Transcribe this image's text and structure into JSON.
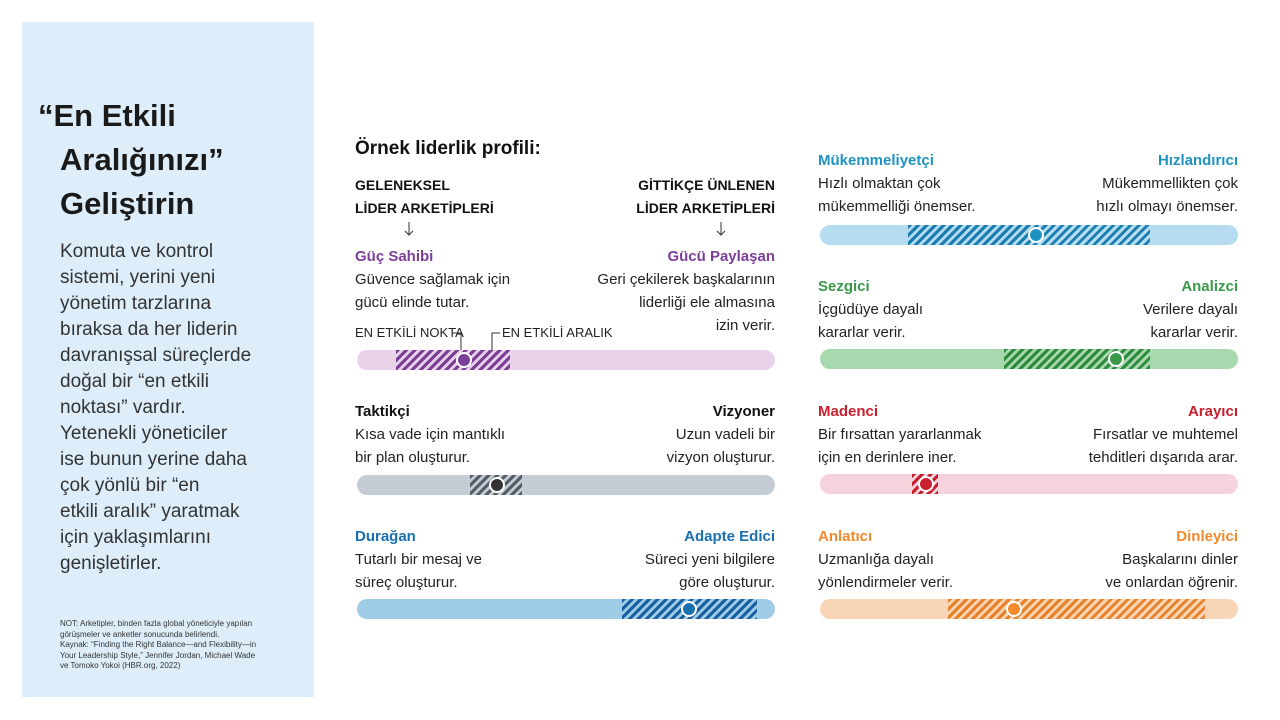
{
  "sidebar": {
    "title": [
      "“En Etkili",
      "Aralığınızı”",
      "Geliştirin"
    ],
    "body": [
      "Komuta ve kontrol",
      "sistemi, yerini yeni",
      "yönetim tarzlarına",
      "bıraksa da her liderin",
      "davranışsal süreçlerde",
      "doğal bir “en etkili",
      "noktası” vardır.",
      "Yetenekli yöneticiler",
      "ise bunun yerine daha",
      "çok yönlü bir “en",
      "etkili aralık” yaratmak",
      "için yaklaşımlarını",
      "genişletirler."
    ],
    "note": [
      "NOT: Arketipler, binden fazla global yöneticiyle yapılan",
      "görüşmeler ve anketler sonucunda belirlendi.",
      "Kaynak: “Finding the Right Balance—and Flexibility—in",
      "Your Leadership Style,” Jennifer Jordan, Michael Wade",
      "ve Tomoko Yokoi (HBR.org, 2022)"
    ]
  },
  "profile_heading": "Örnek liderlik profili:",
  "archetype_headers": {
    "left": [
      "GELENEKSEL",
      "LİDER ARKETİPLERİ"
    ],
    "right": [
      "GİTTİKÇE ÜNLENEN",
      "LİDER ARKETİPLERİ"
    ]
  },
  "markers": {
    "point": "EN ETKİLİ NOKTA",
    "range": "EN ETKİLİ ARALIK"
  },
  "profiles": [
    {
      "left_name": "Güç Sahibi",
      "left_desc": [
        "Güvence sağlamak için",
        "gücü elinde tutar."
      ],
      "right_name": "Gücü Paylaşan",
      "right_desc": [
        "Geri çekilerek başkalarının",
        "liderliği ele almasına",
        "izin verir."
      ]
    },
    {
      "left_name": "Taktikçi",
      "left_desc": [
        "Kısa vade için mantıklı",
        "bir plan oluşturur."
      ],
      "right_name": "Vizyoner",
      "right_desc": [
        "Uzun vadeli bir",
        "vizyon oluşturur."
      ]
    },
    {
      "left_name": "Durağan",
      "left_desc": [
        "Tutarlı bir mesaj ve",
        "süreç oluşturur."
      ],
      "right_name": "Adapte Edici",
      "right_desc": [
        "Süreci yeni bilgilere",
        "göre oluşturur."
      ]
    },
    {
      "left_name": "Mükemmeliyetçi",
      "left_desc": [
        "Hızlı olmaktan çok",
        "mükemmelliği önemser."
      ],
      "right_name": "Hızlandırıcı",
      "right_desc": [
        "Mükemmellikten çok",
        "hızlı olmayı önemser."
      ]
    },
    {
      "left_name": "Sezgici",
      "left_desc": [
        "İçgüdüye dayalı",
        "kararlar verir."
      ],
      "right_name": "Analizci",
      "right_desc": [
        "Verilere dayalı",
        "kararlar verir."
      ]
    },
    {
      "left_name": "Madenci",
      "left_desc": [
        "Bir fırsattan yararlanmak",
        "için en derinlere iner."
      ],
      "right_name": "Arayıcı",
      "right_desc": [
        "Fırsatlar ve muhtemel",
        "tehditleri dışarıda arar."
      ]
    },
    {
      "left_name": "Anlatıcı",
      "left_desc": [
        "Uzmanlığa dayalı",
        "yönlendirmeler verir."
      ],
      "right_name": "Dinleyici",
      "right_desc": [
        "Başkalarını dinler",
        "ve onlardan öğrenir."
      ]
    }
  ]
}
